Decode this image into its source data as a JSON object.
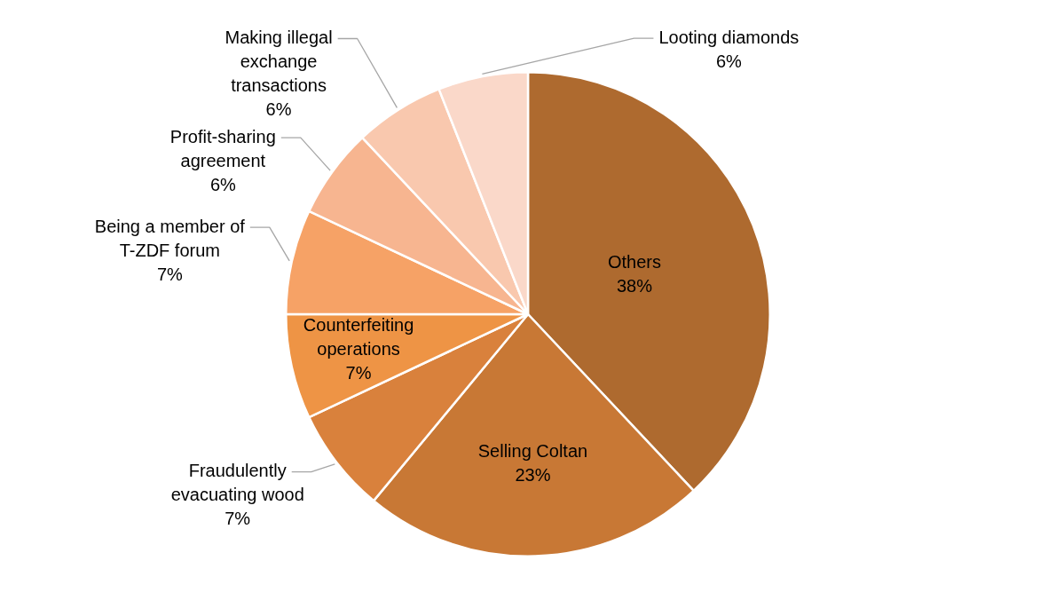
{
  "chart_data": {
    "type": "pie",
    "categories": [
      "Others",
      "Selling Coltan",
      "Fraudulently evacuating wood",
      "Counterfeiting operations",
      "Being a member of T-ZDF forum",
      "Profit-sharing agreement",
      "Making illegal exchange transactions",
      "Looting diamonds"
    ],
    "values": [
      38,
      23,
      7,
      7,
      7,
      6,
      6,
      6
    ],
    "value_labels": [
      "38%",
      "23%",
      "7%",
      "7%",
      "7%",
      "6%",
      "6%",
      "6%"
    ],
    "colors": [
      "#ae6a2f",
      "#c87835",
      "#d9813c",
      "#ee9445",
      "#f6a266",
      "#f7b590",
      "#f9c8ae",
      "#fad8c9"
    ]
  }
}
